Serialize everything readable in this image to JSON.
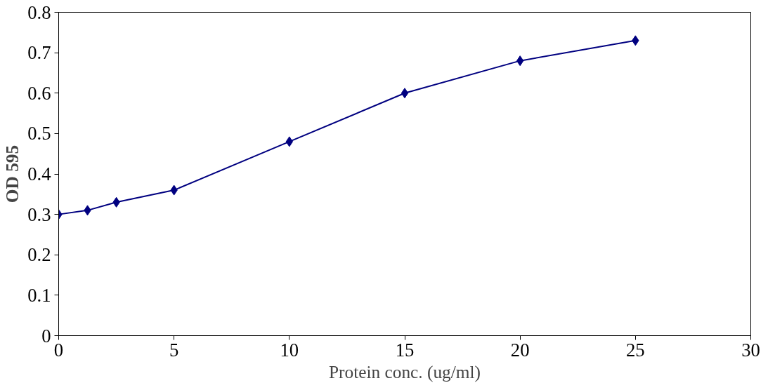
{
  "chart_data": {
    "type": "line",
    "xlabel": "Protein conc. (ug/ml)",
    "ylabel": "OD 595",
    "x": [
      0,
      1.25,
      2.5,
      5,
      10,
      15,
      20,
      25
    ],
    "series": [
      {
        "color": "#000080",
        "values": [
          0.3,
          0.31,
          0.33,
          0.36,
          0.48,
          0.6,
          0.68,
          0.73
        ]
      }
    ],
    "xlim": [
      0,
      30
    ],
    "xticks": [
      0,
      5,
      10,
      15,
      20,
      25,
      30
    ],
    "ylim": [
      0,
      0.8
    ],
    "yticks": [
      {
        "value": 0,
        "label": "0"
      },
      0.1,
      0.2,
      0.3,
      0.4,
      0.5,
      0.6,
      0.7,
      0.8
    ],
    "grid": false,
    "marker": "diamond",
    "line_style": "solid"
  }
}
